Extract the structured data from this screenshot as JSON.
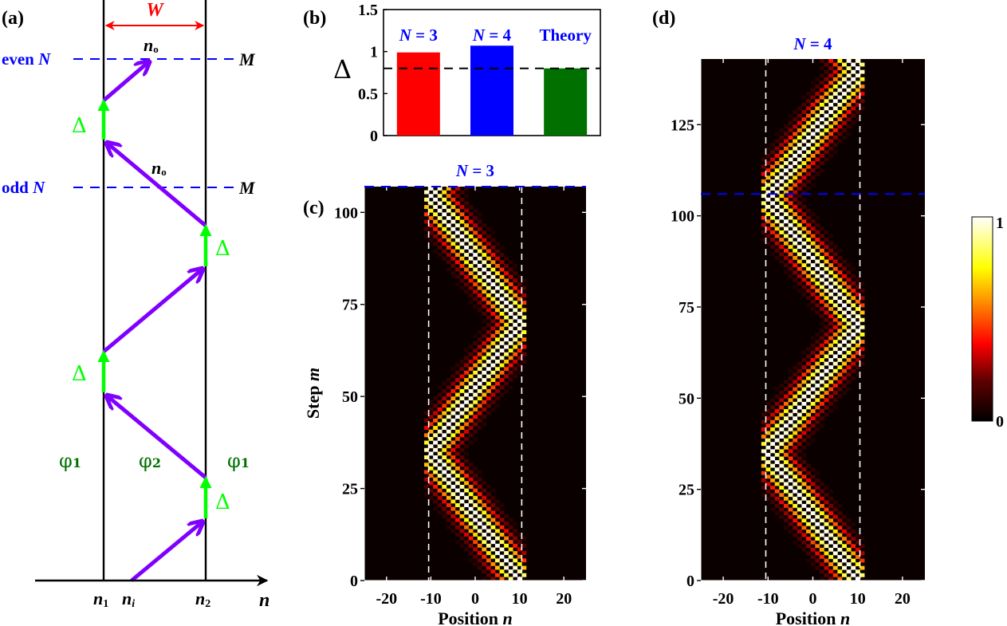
{
  "panels": {
    "a": {
      "label": "(a)",
      "width_label": "W",
      "even_label_prefix": "even ",
      "odd_label_prefix": "odd ",
      "N_symbol": "N",
      "M_label": "M",
      "n0_label": "n",
      "n0_sub": "o",
      "delta_label": "Δ",
      "phi1_label": "φ",
      "phi1_sub": "1",
      "phi2_label": "φ",
      "phi2_sub": "2",
      "axis_label": "n",
      "n1_label": "n",
      "n1_sub": "1",
      "ni_label": "n",
      "ni_sub": "i",
      "n2_label": "n",
      "n2_sub": "2",
      "colors": {
        "wall": "#000000",
        "boundary": "#0000ff",
        "step_arrow": "#8000ff",
        "shift_arrow": "#00ff00",
        "width_arrow": "#ff0000",
        "phi": "#007000"
      }
    },
    "b": {
      "label": "(b)"
    },
    "c": {
      "label": "(c)",
      "title": "N = 3"
    },
    "d": {
      "label": "(d)",
      "title": "N = 4"
    }
  },
  "chart_data": [
    {
      "panel": "b",
      "type": "bar",
      "categories": [
        "N = 3",
        "N = 4",
        "Theory"
      ],
      "values": [
        0.99,
        1.07,
        0.8
      ],
      "colors": [
        "#ff0000",
        "#0000ff",
        "#007000"
      ],
      "ylabel": "Δ",
      "ylim": [
        0,
        1.5
      ],
      "yticks": [
        "0",
        "0.5",
        "1",
        "1.5"
      ],
      "reference_line": 0.8,
      "label_color": "#0000ff"
    },
    {
      "panel": "c",
      "type": "heatmap",
      "title": "N = 3",
      "xlabel": "Position n",
      "ylabel": "Step m",
      "xlim": [
        -25,
        25
      ],
      "ylim": [
        0,
        107
      ],
      "xticks": [
        "-20",
        "-10",
        "0",
        "10",
        "20"
      ],
      "yticks": [
        "0",
        "25",
        "50",
        "75",
        "100"
      ],
      "boundaries": [
        -10.5,
        10.5
      ],
      "cycle_marker_step": 107,
      "wavepacket": {
        "start": 0,
        "period": 70,
        "amplitude_from": -10,
        "amplitude_to": 10,
        "initial_direction": "right"
      }
    },
    {
      "panel": "d",
      "type": "heatmap",
      "title": "N = 4",
      "xlabel": "Position n",
      "ylabel": "",
      "xlim": [
        -25,
        25
      ],
      "ylim": [
        0,
        143
      ],
      "xticks": [
        "-20",
        "-10",
        "0",
        "10",
        "20"
      ],
      "yticks": [
        "0",
        "25",
        "50",
        "75",
        "100",
        "125"
      ],
      "boundaries": [
        -10.5,
        10.5
      ],
      "cycle_marker_step": 106,
      "wavepacket": {
        "start": 0,
        "period": 70,
        "amplitude_from": -10,
        "amplitude_to": 10,
        "initial_direction": "right"
      }
    }
  ],
  "colorbar": {
    "min_label": "0",
    "max_label": "1",
    "colormap": "hot"
  }
}
